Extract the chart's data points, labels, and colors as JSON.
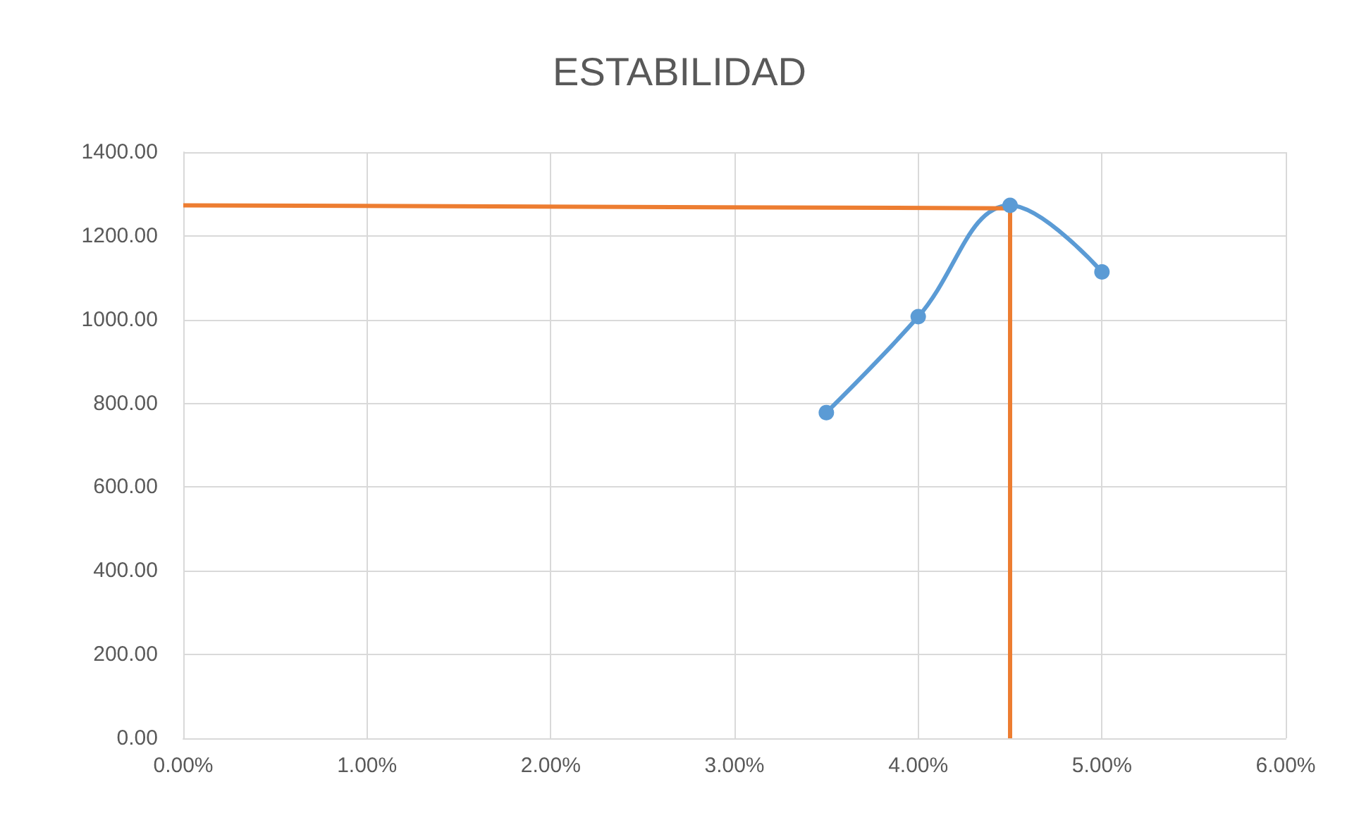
{
  "chart_data": {
    "type": "line",
    "title": "ESTABILIDAD",
    "marker": "circle",
    "grid": true,
    "xlim": [
      0,
      6
    ],
    "xticks": [
      {
        "value": 0,
        "label": "0.00%"
      },
      {
        "value": 1,
        "label": "1.00%"
      },
      {
        "value": 2,
        "label": "2.00%"
      },
      {
        "value": 3,
        "label": "3.00%"
      },
      {
        "value": 4,
        "label": "4.00%"
      },
      {
        "value": 5,
        "label": "5.00%"
      },
      {
        "value": 6,
        "label": "6.00%"
      }
    ],
    "ylim": [
      0,
      1400
    ],
    "yticks": [
      {
        "value": 0,
        "label": "0.00"
      },
      {
        "value": 200,
        "label": "200.00"
      },
      {
        "value": 400,
        "label": "400.00"
      },
      {
        "value": 600,
        "label": "600.00"
      },
      {
        "value": 800,
        "label": "800.00"
      },
      {
        "value": 1000,
        "label": "1000.00"
      },
      {
        "value": 1200,
        "label": "1200.00"
      },
      {
        "value": 1400,
        "label": "1400.00"
      }
    ],
    "series": [
      {
        "color": "#5b9bd5",
        "x": [
          3.5,
          4,
          4.5,
          5
        ],
        "values": [
          778,
          1007,
          1273,
          1114
        ]
      },
      {
        "color": "#ed7d31",
        "marker": "none",
        "x": [
          0,
          4.5,
          4.5
        ],
        "values": [
          1273,
          1266,
          0
        ]
      }
    ]
  }
}
